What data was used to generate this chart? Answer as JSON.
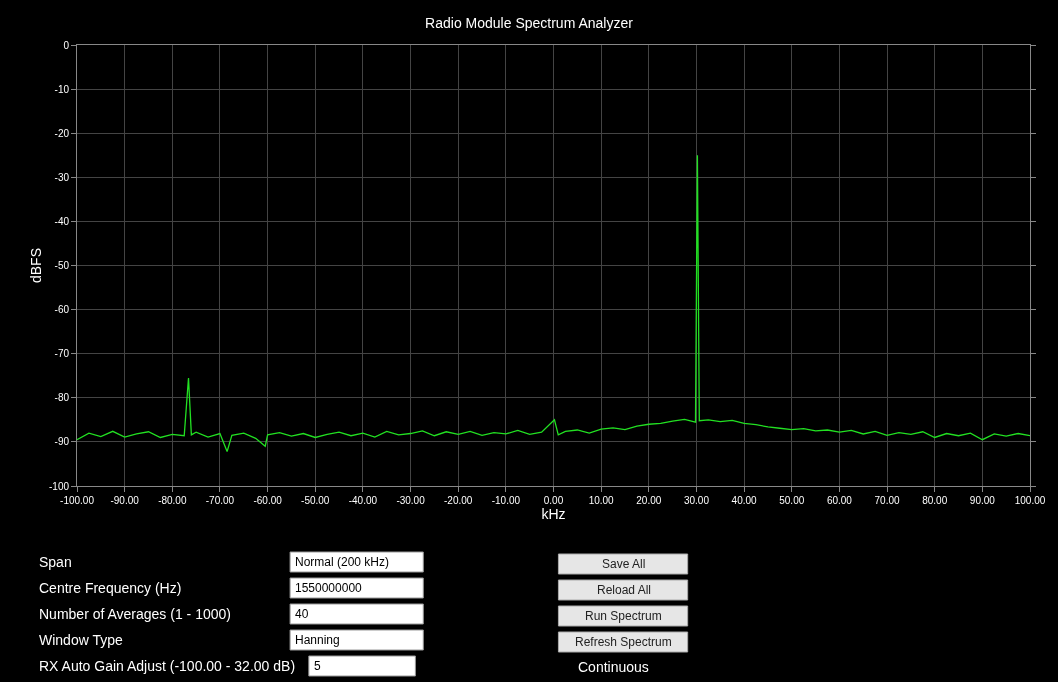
{
  "chart_data": {
    "type": "line",
    "title": "Radio Module Spectrum Analyzer",
    "xlabel": "kHz",
    "ylabel": "dBFS",
    "x": [
      -100,
      -97.5,
      -95,
      -92.5,
      -90,
      -87.5,
      -85,
      -82.5,
      -80,
      -77.5,
      -76.6,
      -76,
      -75,
      -72.5,
      -70,
      -68.5,
      -67.5,
      -65,
      -62.5,
      -60.5,
      -60,
      -57.5,
      -55,
      -52.5,
      -50,
      -47.5,
      -45,
      -42.5,
      -40,
      -37.5,
      -35,
      -32.5,
      -30,
      -27.5,
      -25,
      -22.5,
      -20,
      -17.5,
      -15,
      -12.5,
      -10,
      -7.5,
      -5,
      -2.5,
      0.2,
      1,
      2.5,
      5,
      7.5,
      10,
      12.5,
      15,
      17.5,
      20,
      22.5,
      25,
      27.5,
      29.8,
      30.2,
      30.6,
      32.5,
      35,
      37.5,
      40,
      42.5,
      45,
      47.5,
      50,
      52.5,
      55,
      57.5,
      60,
      62.5,
      65,
      67.5,
      70,
      72.5,
      75,
      77.5,
      80,
      82.5,
      85,
      87.5,
      90,
      92.5,
      95,
      97.5,
      100
    ],
    "series": [
      {
        "color": "#22e022",
        "values": [
          -89.5,
          -88,
          -88.8,
          -87.6,
          -88.9,
          -88.2,
          -87.7,
          -89.0,
          -88.3,
          -88.6,
          -75.5,
          -88.4,
          -87.8,
          -88.9,
          -88.1,
          -92.2,
          -88.5,
          -88.0,
          -89.2,
          -91.0,
          -88.4,
          -87.9,
          -88.7,
          -88.1,
          -89.0,
          -88.3,
          -87.8,
          -88.6,
          -88.0,
          -88.9,
          -87.6,
          -88.4,
          -88.1,
          -87.5,
          -88.6,
          -87.7,
          -88.3,
          -87.6,
          -88.5,
          -87.9,
          -88.2,
          -87.4,
          -88.3,
          -87.8,
          -85.0,
          -88.4,
          -87.6,
          -87.3,
          -88.0,
          -87.1,
          -86.8,
          -87.2,
          -86.4,
          -86.0,
          -85.8,
          -85.3,
          -84.9,
          -85.5,
          -25.0,
          -85.2,
          -85.0,
          -85.4,
          -85.1,
          -85.8,
          -86.1,
          -86.6,
          -86.9,
          -87.2,
          -87.0,
          -87.5,
          -87.3,
          -87.8,
          -87.4,
          -88.2,
          -87.6,
          -88.5,
          -87.9,
          -88.3,
          -87.7,
          -89.0,
          -88.1,
          -88.6,
          -88.0,
          -89.5,
          -88.2,
          -88.7,
          -88.1,
          -88.6
        ]
      }
    ],
    "xlim": [
      -100,
      100
    ],
    "xticks": [
      {
        "value": -100,
        "label": "-100.00"
      },
      {
        "value": -90,
        "label": "-90.00"
      },
      {
        "value": -80,
        "label": "-80.00"
      },
      {
        "value": -70,
        "label": "-70.00"
      },
      {
        "value": -60,
        "label": "-60.00"
      },
      {
        "value": -50,
        "label": "-50.00"
      },
      {
        "value": -40,
        "label": "-40.00"
      },
      {
        "value": -30,
        "label": "-30.00"
      },
      {
        "value": -20,
        "label": "-20.00"
      },
      {
        "value": -10,
        "label": "-10.00"
      },
      {
        "value": 0,
        "label": "0.00"
      },
      {
        "value": 10,
        "label": "10.00"
      },
      {
        "value": 20,
        "label": "20.00"
      },
      {
        "value": 30,
        "label": "30.00"
      },
      {
        "value": 40,
        "label": "40.00"
      },
      {
        "value": 50,
        "label": "50.00"
      },
      {
        "value": 60,
        "label": "60.00"
      },
      {
        "value": 70,
        "label": "70.00"
      },
      {
        "value": 80,
        "label": "80.00"
      },
      {
        "value": 90,
        "label": "90.00"
      },
      {
        "value": 100,
        "label": "100.00"
      }
    ],
    "ylim": [
      -100,
      0
    ],
    "yticks": [
      -100,
      -90,
      -80,
      -70,
      -60,
      -50,
      -40,
      -30,
      -20,
      -10,
      0
    ],
    "grid": true,
    "marker": "none",
    "line_style": "solid",
    "annotations": [
      "Span",
      "Centre Frequency (Hz)",
      "Number of Averages (1 - 1000)",
      "Window Type",
      "RX Auto Gain Adjust (-100.00 - 32.00 dB)",
      "Normal (200 kHz)",
      "1550000000",
      "40",
      "Hanning",
      "5",
      "Save All",
      "Reload All",
      "Run Spectrum",
      "Refresh Spectrum",
      "Continuous"
    ]
  }
}
